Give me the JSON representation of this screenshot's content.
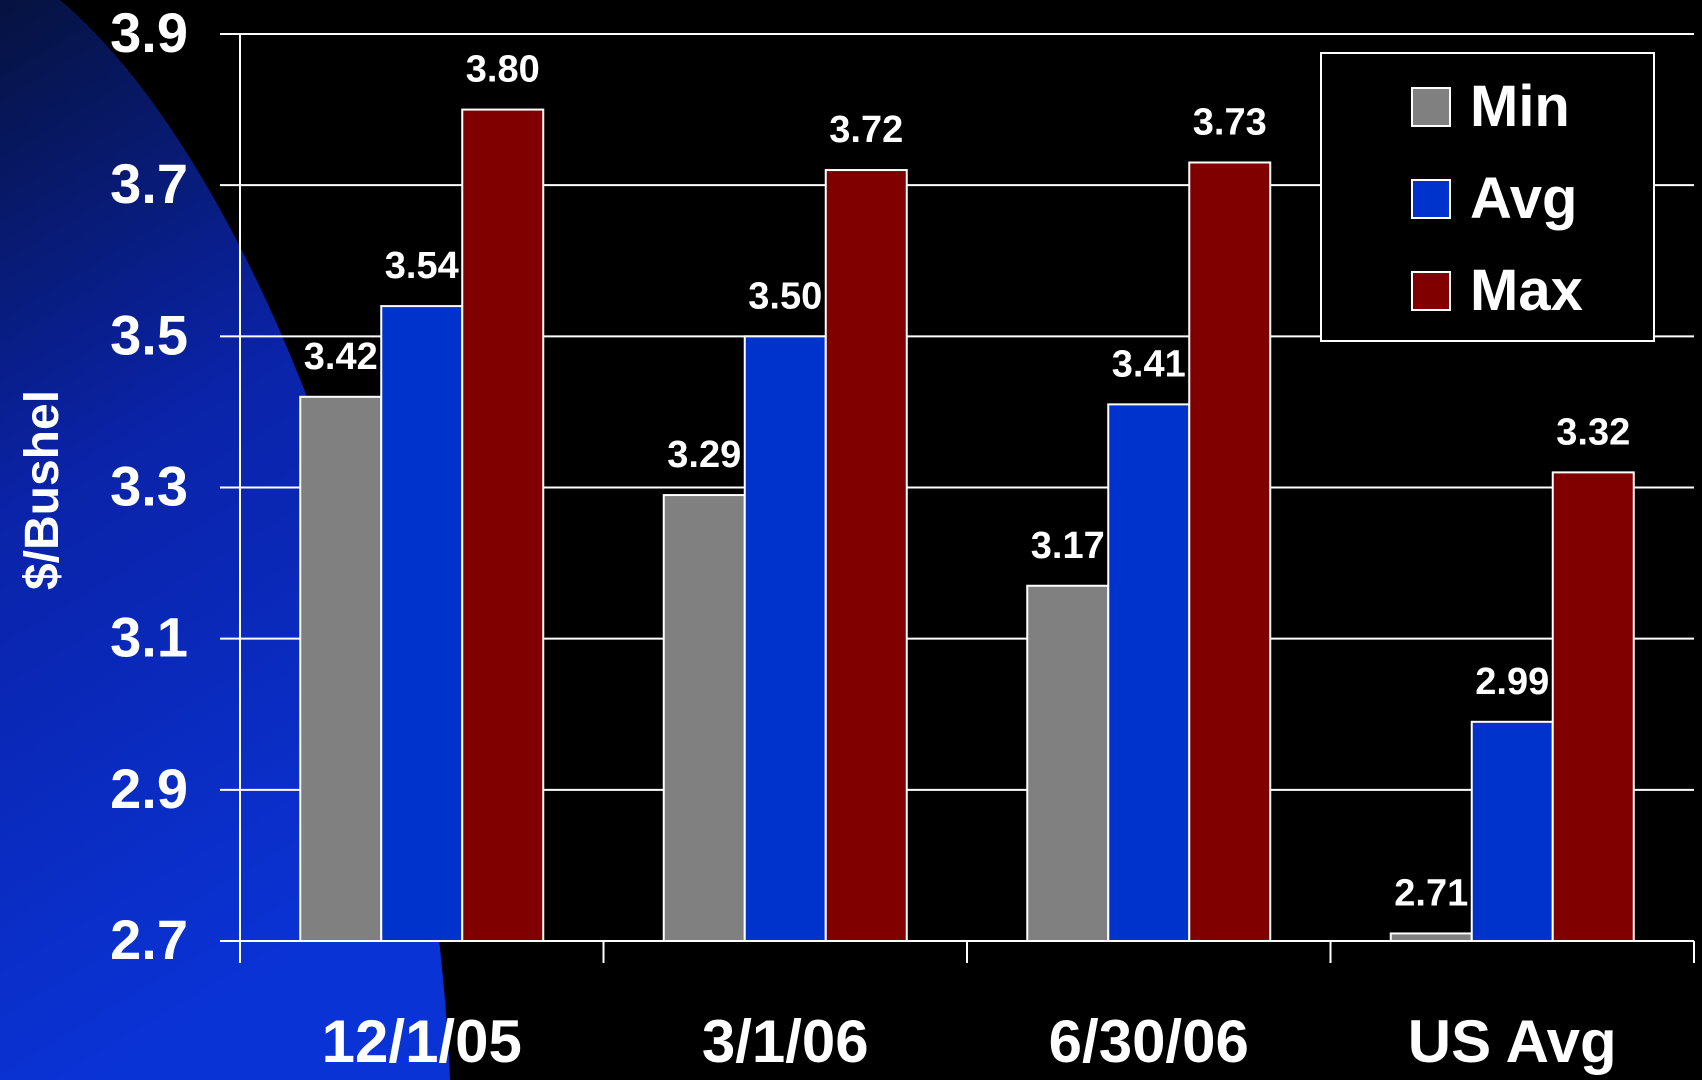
{
  "chart_data": {
    "type": "bar",
    "title": "",
    "xlabel": "",
    "ylabel": "$/Bushel",
    "ylim": [
      2.7,
      3.9
    ],
    "yticks": [
      "2.7",
      "2.9",
      "3.1",
      "3.3",
      "3.5",
      "3.7",
      "3.9"
    ],
    "grid": true,
    "legend_position": "top-right",
    "categories": [
      "12/1/05",
      "3/1/06",
      "6/30/06",
      "US Avg"
    ],
    "series": [
      {
        "name": "Min",
        "color": "#808080",
        "values": [
          3.42,
          3.29,
          3.17,
          2.71
        ],
        "labels": [
          "3.42",
          "3.29",
          "3.17",
          "2.71"
        ]
      },
      {
        "name": "Avg",
        "color": "#0033cc",
        "values": [
          3.54,
          3.5,
          3.41,
          2.99
        ],
        "labels": [
          "3.54",
          "3.50",
          "3.41",
          "2.99"
        ]
      },
      {
        "name": "Max",
        "color": "#800000",
        "values": [
          3.8,
          3.72,
          3.73,
          3.32
        ],
        "labels": [
          "3.80",
          "3.72",
          "3.73",
          "3.32"
        ]
      }
    ]
  },
  "colors": {
    "background": "#000000",
    "backdrop": "#0a2fd0",
    "gridline": "#ffffff",
    "text": "#ffffff"
  }
}
